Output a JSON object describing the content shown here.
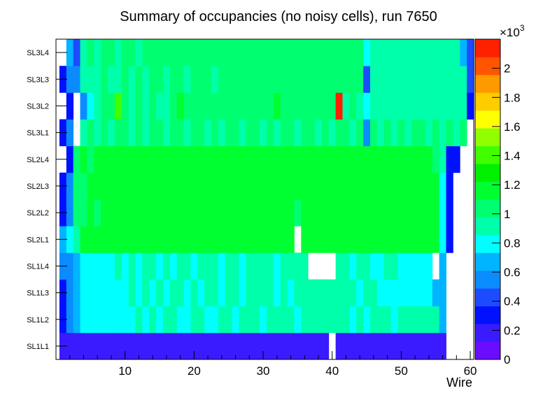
{
  "chart_data": {
    "type": "heatmap",
    "title": "Summary of occupancies (no noisy cells), run 7650",
    "xlabel": "Wire",
    "ylabel": "",
    "xlim": [
      0,
      60.5
    ],
    "x_ticks": [
      10,
      20,
      30,
      40,
      50,
      60
    ],
    "y_categories": [
      "SL1L1",
      "SL1L2",
      "SL1L3",
      "SL1L4",
      "SL2L1",
      "SL2L2",
      "SL2L3",
      "SL2L4",
      "SL3L1",
      "SL3L2",
      "SL3L3",
      "SL3L4"
    ],
    "colorbar": {
      "exponent_label": "×10",
      "exponent_power": "3",
      "min": 0,
      "max": 2.2,
      "tick_values": [
        0,
        0.2,
        0.4,
        0.6,
        0.8,
        1,
        1.2,
        1.4,
        1.6,
        1.8,
        2
      ],
      "tick_labels": [
        "0",
        "0.2",
        "0.4",
        "0.6",
        "0.8",
        "1",
        "1.2",
        "1.4",
        "1.6",
        "1.8",
        "2"
      ],
      "colors": [
        "#6a0dff",
        "#3a1aff",
        "#0011ff",
        "#1d4cff",
        "#0a8cff",
        "#00b4ff",
        "#00ffff",
        "#00ffaa",
        "#00ff70",
        "#00ff30",
        "#00f000",
        "#40ff00",
        "#90ff00",
        "#ffff00",
        "#ffcc00",
        "#ff9900",
        "#ff5500",
        "#ff2000"
      ]
    },
    "rows": [
      {
        "layer": "SL1L1",
        "first_wire": 1,
        "values": [
          0.15,
          0.15,
          0.15,
          0.15,
          0.15,
          0.15,
          0.15,
          0.15,
          0.15,
          0.15,
          0.15,
          0.15,
          0.15,
          0.15,
          0.15,
          0.15,
          0.15,
          0.15,
          0.15,
          0.15,
          0.15,
          0.15,
          0.15,
          0.15,
          0.15,
          0.15,
          0.15,
          0.15,
          0.15,
          0.15,
          0.15,
          0.15,
          0.15,
          0.15,
          0.15,
          0.15,
          0.15,
          0.15,
          0.15,
          null,
          0.15,
          0.15,
          0.15,
          0.15,
          0.15,
          0.15,
          0.15,
          0.15,
          0.15,
          0.15,
          0.15,
          0.15,
          0.15,
          0.15,
          0.15,
          0.15
        ]
      },
      {
        "layer": "SL1L2",
        "first_wire": 1,
        "values": [
          0.35,
          0.5,
          0.62,
          0.78,
          0.78,
          0.82,
          0.82,
          0.82,
          0.85,
          0.82,
          0.85,
          0.88,
          0.85,
          0.88,
          0.85,
          0.88,
          0.9,
          0.85,
          0.85,
          0.88,
          0.88,
          0.82,
          0.82,
          0.88,
          0.88,
          0.85,
          0.88,
          0.9,
          0.88,
          0.85,
          0.88,
          0.9,
          0.88,
          0.88,
          0.85,
          0.88,
          0.88,
          0.9,
          0.88,
          0.88,
          0.9,
          0.88,
          0.85,
          0.88,
          0.85,
          0.88,
          0.88,
          0.88,
          0.85,
          0.88,
          0.88,
          0.88,
          0.88,
          0.88,
          0.88,
          0.7
        ]
      },
      {
        "layer": "SL1L3",
        "first_wire": 1,
        "values": [
          0.35,
          0.55,
          0.65,
          0.8,
          0.82,
          0.82,
          0.85,
          0.85,
          0.85,
          0.82,
          0.88,
          0.85,
          0.88,
          0.85,
          0.88,
          0.85,
          0.9,
          0.88,
          0.85,
          0.88,
          0.85,
          0.88,
          0.9,
          0.85,
          0.88,
          0.88,
          0.85,
          0.88,
          0.88,
          0.88,
          0.9,
          0.85,
          0.88,
          0.85,
          0.88,
          0.9,
          0.88,
          0.88,
          0.9,
          0.88,
          0.9,
          0.88,
          0.88,
          0.85,
          0.88,
          0.88,
          0.85,
          0.82,
          0.85,
          0.85,
          0.85,
          0.85,
          0.85,
          0.85,
          0.72,
          0.7
        ]
      },
      {
        "layer": "SL1L4",
        "first_wire": 1,
        "values": [
          0.5,
          0.55,
          0.7,
          0.82,
          0.85,
          0.82,
          0.85,
          0.85,
          0.88,
          0.85,
          0.88,
          0.85,
          0.88,
          0.88,
          0.85,
          0.88,
          0.85,
          0.88,
          0.88,
          0.85,
          0.88,
          0.9,
          0.88,
          0.85,
          0.88,
          0.88,
          0.85,
          0.88,
          0.88,
          0.88,
          0.88,
          0.85,
          0.88,
          0.88,
          0.9,
          0.88,
          null,
          null,
          null,
          null,
          0.88,
          0.88,
          0.85,
          0.88,
          0.88,
          0.85,
          0.85,
          0.88,
          0.88,
          0.85,
          0.85,
          0.85,
          0.85,
          0.85,
          null,
          0.7
        ]
      },
      {
        "layer": "SL2L1",
        "first_wire": 1,
        "values": [
          0.65,
          0.8,
          0.9,
          1.1,
          1.1,
          1.12,
          1.15,
          1.15,
          1.12,
          1.15,
          1.12,
          1.15,
          1.12,
          1.15,
          1.12,
          1.15,
          1.15,
          1.12,
          1.1,
          1.15,
          1.12,
          1.15,
          1.15,
          1.12,
          1.15,
          1.12,
          1.15,
          1.1,
          1.15,
          1.12,
          1.15,
          1.12,
          1.12,
          1.1,
          null,
          1.1,
          1.12,
          1.12,
          1.12,
          1.15,
          1.1,
          1.12,
          1.15,
          1.12,
          1.15,
          1.12,
          1.12,
          1.15,
          1.12,
          1.15,
          1.12,
          1.15,
          1.12,
          1.1,
          1.1,
          0.85,
          0.35
        ]
      },
      {
        "layer": "SL2L2",
        "first_wire": 1,
        "values": [
          0.35,
          0.6,
          1.0,
          1.08,
          1.12,
          1.08,
          1.15,
          1.15,
          1.12,
          1.15,
          1.15,
          1.12,
          1.12,
          1.12,
          1.15,
          1.12,
          1.12,
          1.15,
          1.12,
          1.15,
          1.12,
          1.12,
          1.15,
          1.12,
          1.15,
          1.15,
          1.12,
          1.15,
          1.15,
          1.12,
          1.15,
          1.12,
          1.15,
          1.12,
          1.05,
          1.12,
          1.15,
          1.12,
          1.15,
          1.12,
          1.15,
          1.12,
          1.12,
          1.15,
          1.12,
          1.15,
          1.12,
          1.15,
          1.12,
          1.12,
          1.15,
          1.12,
          1.15,
          1.12,
          1.12,
          0.85,
          0.35
        ]
      },
      {
        "layer": "SL2L3",
        "first_wire": 1,
        "values": [
          0.35,
          0.55,
          1.05,
          1.08,
          1.15,
          1.12,
          1.15,
          1.12,
          1.15,
          1.12,
          1.15,
          1.15,
          1.12,
          1.15,
          1.12,
          1.15,
          1.18,
          1.12,
          1.15,
          1.12,
          1.15,
          1.15,
          1.12,
          1.15,
          1.15,
          1.12,
          1.15,
          1.12,
          1.15,
          1.12,
          1.15,
          1.12,
          1.12,
          1.15,
          1.15,
          1.12,
          1.12,
          1.15,
          1.15,
          1.12,
          1.15,
          1.15,
          1.12,
          1.15,
          1.12,
          1.15,
          1.12,
          1.15,
          1.15,
          1.12,
          1.15,
          1.12,
          1.15,
          1.12,
          1.12,
          0.85,
          0.35
        ]
      },
      {
        "layer": "SL2L4",
        "first_wire": 1,
        "values": [
          null,
          0.35,
          1.05,
          1.12,
          1.08,
          1.12,
          1.15,
          1.12,
          1.15,
          1.12,
          1.15,
          1.12,
          1.15,
          1.15,
          1.12,
          1.15,
          1.12,
          1.15,
          1.15,
          1.12,
          1.15,
          1.12,
          1.15,
          1.12,
          1.15,
          1.12,
          1.12,
          1.15,
          1.12,
          1.15,
          1.12,
          1.15,
          1.12,
          1.15,
          1.12,
          1.15,
          1.12,
          1.15,
          1.12,
          1.15,
          1.12,
          1.12,
          1.15,
          1.12,
          1.15,
          1.12,
          1.15,
          1.12,
          1.15,
          1.12,
          1.15,
          1.12,
          1.12,
          1.15,
          1.05,
          0.9,
          0.35,
          0.35
        ]
      },
      {
        "layer": "SL3L1",
        "first_wire": 1,
        "values": [
          0.35,
          0.6,
          null,
          0.95,
          0.98,
          0.95,
          1.0,
          0.95,
          0.98,
          1.0,
          0.95,
          0.98,
          0.95,
          1.0,
          0.98,
          0.95,
          1.0,
          0.98,
          0.95,
          0.98,
          1.0,
          0.95,
          0.98,
          0.95,
          1.0,
          0.98,
          0.95,
          0.98,
          1.0,
          0.95,
          0.98,
          0.95,
          1.0,
          0.98,
          0.95,
          0.98,
          1.0,
          0.95,
          0.98,
          0.95,
          0.98,
          1.0,
          0.95,
          0.98,
          0.6,
          1.0,
          0.95,
          0.98,
          0.95,
          0.98,
          0.95,
          1.0,
          0.98,
          0.95,
          0.98,
          0.95,
          0.98,
          0.95,
          0.98,
          null
        ]
      },
      {
        "layer": "SL3L2",
        "first_wire": 1,
        "values": [
          null,
          0.3,
          null,
          0.6,
          0.85,
          0.95,
          1.0,
          1.05,
          1.35,
          1.0,
          0.95,
          1.0,
          0.95,
          1.0,
          0.9,
          0.95,
          1.0,
          1.1,
          1.05,
          1.0,
          1.05,
          1.0,
          1.05,
          1.0,
          1.05,
          1.0,
          1.0,
          1.05,
          1.0,
          1.05,
          1.0,
          1.1,
          1.05,
          1.05,
          1.0,
          1.05,
          1.0,
          1.05,
          1.0,
          1.05,
          2.1,
          0.95,
          1.0,
          0.95,
          0.75,
          0.9,
          0.95,
          0.9,
          0.95,
          0.9,
          0.95,
          0.9,
          0.95,
          0.9,
          0.95,
          0.9,
          0.95,
          0.9,
          0.95,
          0.35
        ]
      },
      {
        "layer": "SL3L3",
        "first_wire": 1,
        "values": [
          0.35,
          0.55,
          0.55,
          0.95,
          0.95,
          0.95,
          0.98,
          0.95,
          0.95,
          0.98,
          0.95,
          1.0,
          0.95,
          1.0,
          0.98,
          0.95,
          1.05,
          1.0,
          0.95,
          0.98,
          1.0,
          0.98,
          0.95,
          1.05,
          1.0,
          1.0,
          0.98,
          1.05,
          1.0,
          1.0,
          1.05,
          1.0,
          1.05,
          1.0,
          1.05,
          1.0,
          1.05,
          1.05,
          1.0,
          1.0,
          1.05,
          1.0,
          1.05,
          1.0,
          0.45,
          0.95,
          0.9,
          0.95,
          0.9,
          0.95,
          0.9,
          0.95,
          0.9,
          0.95,
          0.9,
          0.95,
          0.9,
          0.95,
          0.9,
          0.4
        ]
      },
      {
        "layer": "SL3L4",
        "first_wire": 1,
        "values": [
          null,
          0.7,
          0.45,
          0.95,
          0.98,
          0.95,
          1.0,
          0.98,
          0.95,
          1.0,
          0.98,
          0.95,
          1.0,
          1.0,
          0.98,
          1.0,
          1.0,
          0.98,
          1.0,
          0.98,
          1.0,
          1.05,
          1.0,
          1.0,
          1.0,
          1.0,
          0.98,
          1.05,
          1.0,
          1.0,
          1.05,
          1.0,
          1.05,
          1.0,
          1.05,
          1.0,
          1.05,
          1.05,
          1.0,
          1.05,
          1.0,
          1.0,
          1.05,
          1.0,
          0.8,
          0.9,
          0.9,
          0.88,
          0.9,
          0.88,
          0.9,
          0.88,
          0.9,
          0.88,
          0.9,
          0.88,
          0.95,
          0.9,
          0.7,
          0.45
        ]
      }
    ]
  }
}
